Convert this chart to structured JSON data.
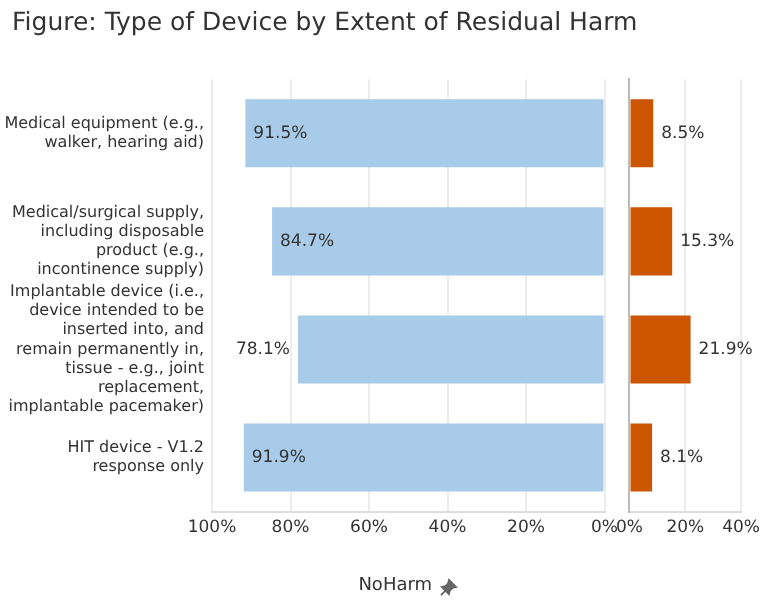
{
  "chart_data": [
    {
      "type": "bar",
      "orientation": "horizontal",
      "title": "Figure: Type of Device by Extent of Residual Harm",
      "xlabel": "NoHarm",
      "categories": [
        "Medical equipment (e.g., walker, hearing aid)",
        "Medical/surgical supply, including disposable product (e.g., incontinence supply)",
        "Implantable device (i.e., device intended to be inserted into, and remain permanently in, tissue - e.g., joint replacement, implantable pacemaker)",
        "HIT device - V1.2 response only"
      ],
      "series": [
        {
          "color": "#a7cbe8",
          "values": [
            91.5,
            84.7,
            78.1,
            91.9
          ]
        }
      ],
      "xlim": [
        100,
        0
      ],
      "xticks": [
        {
          "value": 100,
          "label": "100%"
        },
        {
          "value": 80,
          "label": "80%"
        },
        {
          "value": 60,
          "label": "60%"
        },
        {
          "value": 40,
          "label": "40%"
        },
        {
          "value": 20,
          "label": "20%"
        },
        {
          "value": 0,
          "label": "0%"
        }
      ],
      "value_labels": [
        "91.5%",
        "84.7%",
        "78.1%",
        "91.9%"
      ],
      "grid": "x",
      "legend": false
    },
    {
      "type": "bar",
      "orientation": "horizontal",
      "categories": [
        null,
        null,
        null,
        null
      ],
      "series": [
        {
          "color": "#cc5500",
          "values": [
            8.5,
            15.3,
            21.9,
            8.1
          ]
        }
      ],
      "xlim": [
        0,
        40
      ],
      "xticks": [
        {
          "value": 0,
          "label": "0%"
        },
        {
          "value": 20,
          "label": "20%"
        },
        {
          "value": 40,
          "label": "40%"
        }
      ],
      "value_labels": [
        "8.5%",
        "15.3%",
        "21.9%",
        "8.1%"
      ],
      "grid": "x",
      "legend": false,
      "tick_labels": "x"
    }
  ]
}
